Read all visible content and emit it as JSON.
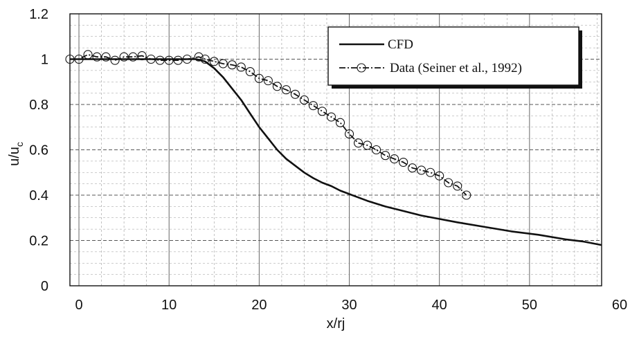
{
  "chart_data": {
    "type": "line",
    "xlabel": "x/rj",
    "ylabel": "u/u",
    "ylabel_subscript": "c",
    "xlim": [
      -1,
      58
    ],
    "ylim": [
      0,
      1.2
    ],
    "x_ticks": [
      "0",
      "10",
      "20",
      "30",
      "40",
      "50",
      "60"
    ],
    "x_tick_values": [
      0,
      10,
      20,
      30,
      40,
      50,
      60
    ],
    "y_ticks": [
      "0",
      "0.2",
      "0.4",
      "0.6",
      "0.8",
      "1",
      "1.2"
    ],
    "y_tick_values": [
      0,
      0.2,
      0.4,
      0.6,
      0.8,
      1.0,
      1.2
    ],
    "grid": true,
    "legend_position": "top-right",
    "series": [
      {
        "name": "CFD",
        "style": "solid",
        "color": "#111111",
        "x": [
          -1,
          2,
          6,
          10,
          13,
          14,
          15,
          16,
          17,
          18,
          19,
          20,
          21,
          22,
          23,
          24,
          25,
          26,
          27,
          28,
          29,
          30,
          32,
          34,
          36,
          38,
          40,
          42,
          45,
          48,
          51,
          54,
          56,
          58
        ],
        "y": [
          1.0,
          1.0,
          1.0,
          1.0,
          1.0,
          0.99,
          0.96,
          0.92,
          0.87,
          0.82,
          0.76,
          0.7,
          0.65,
          0.6,
          0.56,
          0.53,
          0.5,
          0.475,
          0.455,
          0.44,
          0.42,
          0.405,
          0.375,
          0.35,
          0.33,
          0.31,
          0.295,
          0.28,
          0.26,
          0.24,
          0.225,
          0.205,
          0.195,
          0.18
        ]
      },
      {
        "name": "Data (Seiner et al.,  1992)",
        "style": "dash-dot-circle",
        "color": "#111111",
        "x": [
          -1,
          0,
          1,
          2,
          3,
          4,
          5,
          6,
          7,
          8,
          9,
          10,
          11,
          12,
          13.3,
          14,
          15,
          16,
          17,
          18,
          19,
          20,
          21,
          22,
          23,
          24,
          25,
          26,
          27,
          28,
          29,
          30,
          31,
          32,
          33,
          34,
          35,
          36,
          37,
          38,
          39,
          40,
          41,
          42,
          43
        ],
        "y": [
          1.0,
          1.0,
          1.02,
          1.01,
          1.01,
          0.995,
          1.01,
          1.01,
          1.015,
          1.0,
          0.995,
          0.995,
          0.995,
          1.0,
          1.01,
          1.0,
          0.99,
          0.98,
          0.975,
          0.965,
          0.945,
          0.915,
          0.905,
          0.88,
          0.865,
          0.845,
          0.82,
          0.795,
          0.77,
          0.745,
          0.72,
          0.67,
          0.63,
          0.62,
          0.6,
          0.575,
          0.56,
          0.545,
          0.52,
          0.51,
          0.5,
          0.485,
          0.455,
          0.44,
          0.4
        ]
      }
    ]
  }
}
